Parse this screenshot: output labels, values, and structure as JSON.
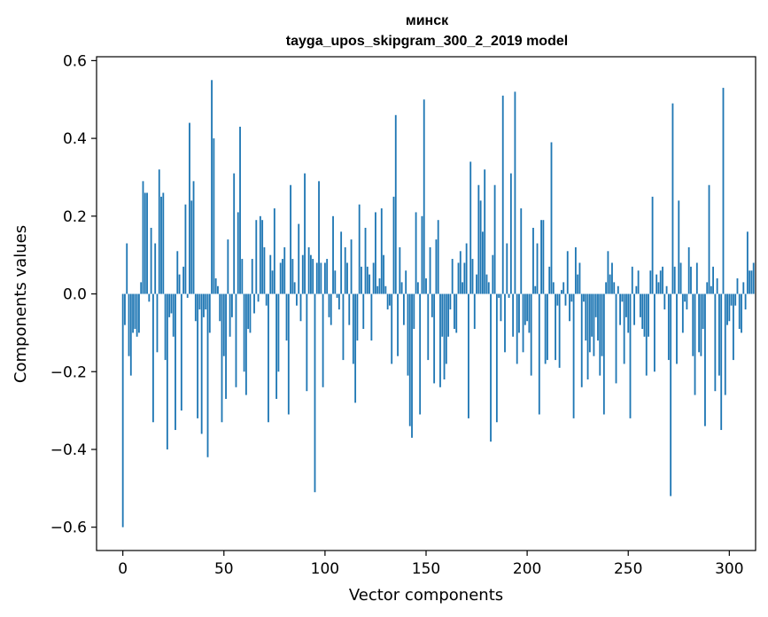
{
  "chart_data": {
    "type": "bar",
    "title": "минск",
    "subtitle": "tayga_upos_skipgram_300_2_2019 model",
    "xlabel": "Vector components",
    "ylabel": "Components values",
    "xlim": [
      -13,
      313
    ],
    "ylim": [
      -0.66,
      0.61
    ],
    "xticks": [
      0,
      50,
      100,
      150,
      200,
      250,
      300
    ],
    "yticks": [
      -0.6,
      -0.4,
      -0.2,
      0.0,
      0.2,
      0.4,
      0.6
    ],
    "xtick_labels": [
      "0",
      "50",
      "100",
      "150",
      "200",
      "250",
      "300"
    ],
    "ytick_labels": [
      "−0.6",
      "−0.4",
      "−0.2",
      "0.0",
      "0.2",
      "0.4",
      "0.6"
    ],
    "bar_color": "#1f77b4",
    "grid": false,
    "legend": "none",
    "values": [
      -0.6,
      -0.08,
      0.13,
      -0.16,
      -0.21,
      -0.1,
      -0.09,
      -0.11,
      -0.1,
      0.03,
      0.29,
      0.26,
      0.26,
      -0.02,
      0.17,
      -0.33,
      0.13,
      -0.15,
      0.32,
      0.25,
      0.26,
      -0.17,
      -0.4,
      -0.06,
      -0.05,
      -0.11,
      -0.35,
      0.11,
      0.05,
      -0.3,
      0.07,
      0.23,
      -0.01,
      0.44,
      0.24,
      0.29,
      -0.07,
      -0.32,
      -0.04,
      -0.36,
      -0.06,
      -0.04,
      -0.42,
      -0.1,
      0.55,
      0.4,
      0.04,
      0.02,
      -0.07,
      -0.33,
      -0.16,
      -0.27,
      0.14,
      -0.11,
      -0.06,
      0.31,
      -0.24,
      0.21,
      0.43,
      0.09,
      -0.2,
      -0.26,
      -0.09,
      -0.1,
      0.09,
      -0.05,
      0.19,
      -0.02,
      0.2,
      0.19,
      0.12,
      -0.03,
      -0.33,
      0.1,
      0.06,
      0.22,
      -0.27,
      -0.2,
      0.08,
      0.09,
      0.12,
      -0.12,
      -0.31,
      0.28,
      0.09,
      0.03,
      -0.03,
      0.18,
      -0.07,
      0.1,
      0.31,
      -0.25,
      0.12,
      0.1,
      0.09,
      -0.51,
      0.08,
      0.29,
      0.08,
      -0.24,
      0.08,
      0.09,
      -0.06,
      -0.08,
      0.2,
      0.06,
      -0.01,
      -0.04,
      0.16,
      -0.17,
      0.12,
      0.08,
      -0.08,
      0.14,
      -0.18,
      -0.28,
      -0.12,
      0.23,
      0.07,
      -0.09,
      0.17,
      0.07,
      0.05,
      -0.12,
      0.08,
      0.21,
      0.02,
      0.04,
      0.22,
      0.1,
      0.02,
      -0.04,
      -0.03,
      -0.18,
      0.25,
      0.46,
      -0.16,
      0.12,
      0.03,
      -0.08,
      0.06,
      -0.21,
      -0.34,
      -0.37,
      -0.09,
      0.21,
      0.03,
      -0.31,
      0.2,
      0.5,
      0.04,
      -0.17,
      0.12,
      -0.06,
      -0.23,
      0.14,
      0.19,
      -0.24,
      -0.11,
      -0.22,
      -0.18,
      -0.11,
      -0.04,
      0.09,
      -0.09,
      -0.1,
      0.08,
      0.11,
      0.03,
      0.08,
      0.13,
      -0.32,
      0.34,
      0.09,
      -0.09,
      0.05,
      0.28,
      0.24,
      0.16,
      0.32,
      0.05,
      0.03,
      -0.38,
      0.1,
      0.28,
      -0.33,
      -0.01,
      -0.07,
      0.51,
      -0.15,
      0.13,
      -0.01,
      0.31,
      -0.11,
      0.52,
      -0.18,
      -0.1,
      0.22,
      -0.15,
      -0.08,
      -0.07,
      -0.1,
      -0.21,
      0.17,
      0.02,
      0.13,
      -0.31,
      0.19,
      0.19,
      -0.18,
      -0.17,
      0.07,
      0.39,
      0.03,
      -0.17,
      -0.03,
      -0.19,
      0.01,
      0.03,
      -0.03,
      0.11,
      -0.07,
      -0.02,
      -0.32,
      0.12,
      0.05,
      0.08,
      -0.24,
      -0.02,
      -0.12,
      -0.22,
      -0.15,
      -0.11,
      -0.16,
      -0.06,
      -0.12,
      -0.21,
      -0.16,
      -0.31,
      0.03,
      0.11,
      0.05,
      0.08,
      0.03,
      -0.23,
      0.02,
      -0.08,
      -0.02,
      -0.18,
      -0.06,
      -0.1,
      -0.32,
      0.07,
      -0.08,
      0.02,
      0.06,
      -0.06,
      -0.09,
      -0.11,
      -0.21,
      -0.11,
      0.06,
      0.25,
      -0.2,
      0.05,
      0.03,
      0.06,
      0.07,
      -0.04,
      0.02,
      -0.17,
      -0.52,
      0.49,
      0.07,
      -0.18,
      0.24,
      0.08,
      -0.1,
      -0.02,
      -0.04,
      0.12,
      0.07,
      -0.16,
      -0.26,
      0.08,
      -0.15,
      -0.16,
      -0.09,
      -0.34,
      0.03,
      0.28,
      0.02,
      0.07,
      -0.25,
      0.04,
      -0.21,
      -0.35,
      0.53,
      -0.26,
      -0.08,
      -0.07,
      -0.03,
      -0.17,
      -0.03,
      0.04,
      -0.09,
      -0.1,
      0.03,
      -0.04,
      0.16,
      0.06,
      0.06,
      0.08
    ]
  }
}
